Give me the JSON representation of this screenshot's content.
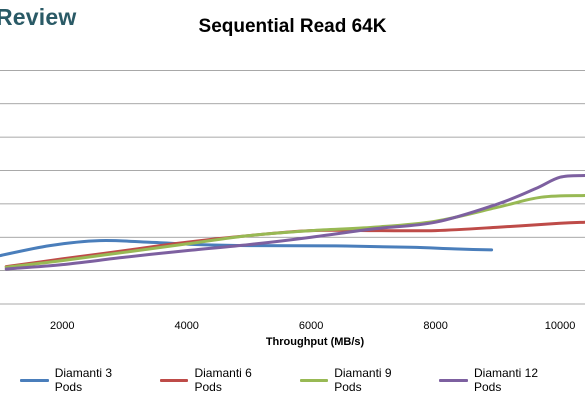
{
  "brand": "Review",
  "chart_data": {
    "type": "line",
    "title": "Sequential Read 64K",
    "xlabel": "Throughput (MB/s)",
    "ylabel": "",
    "xlim": [
      1000,
      10400
    ],
    "x_ticks": [
      2000,
      4000,
      6000,
      8000,
      10000
    ],
    "ylim": [
      0,
      7.4
    ],
    "y_grid": [
      1,
      2,
      3,
      4,
      5,
      6,
      7
    ],
    "grid": "horizontal",
    "legend_position": "bottom",
    "series": [
      {
        "name": "Diamanti 3 Pods",
        "color": "#4a7ebb",
        "x": [
          1000,
          1800,
          2600,
          3400,
          4200,
          5000,
          6400,
          7600,
          8300,
          8900
        ],
        "y": [
          1.45,
          1.75,
          1.9,
          1.85,
          1.78,
          1.75,
          1.74,
          1.7,
          1.65,
          1.62
        ]
      },
      {
        "name": "Diamanti 6 Pods",
        "color": "#be4b48",
        "x": [
          1100,
          2000,
          3000,
          4000,
          5000,
          6000,
          7000,
          8000,
          9000,
          10000,
          10400
        ],
        "y": [
          1.12,
          1.35,
          1.6,
          1.85,
          2.05,
          2.2,
          2.2,
          2.2,
          2.3,
          2.42,
          2.45
        ]
      },
      {
        "name": "Diamanti 9 Pods",
        "color": "#98b954",
        "x": [
          1100,
          2000,
          3000,
          4000,
          5000,
          6000,
          7000,
          8000,
          9000,
          9700,
          10400
        ],
        "y": [
          1.1,
          1.3,
          1.55,
          1.8,
          2.05,
          2.2,
          2.3,
          2.48,
          2.9,
          3.2,
          3.25
        ]
      },
      {
        "name": "Diamanti 12 Pods",
        "color": "#7d60a0",
        "x": [
          1100,
          2000,
          3000,
          4000,
          5000,
          6000,
          7000,
          8000,
          9000,
          9600,
          10000,
          10400
        ],
        "y": [
          1.05,
          1.18,
          1.4,
          1.6,
          1.78,
          2.0,
          2.25,
          2.45,
          3.0,
          3.45,
          3.8,
          3.85
        ]
      }
    ]
  }
}
